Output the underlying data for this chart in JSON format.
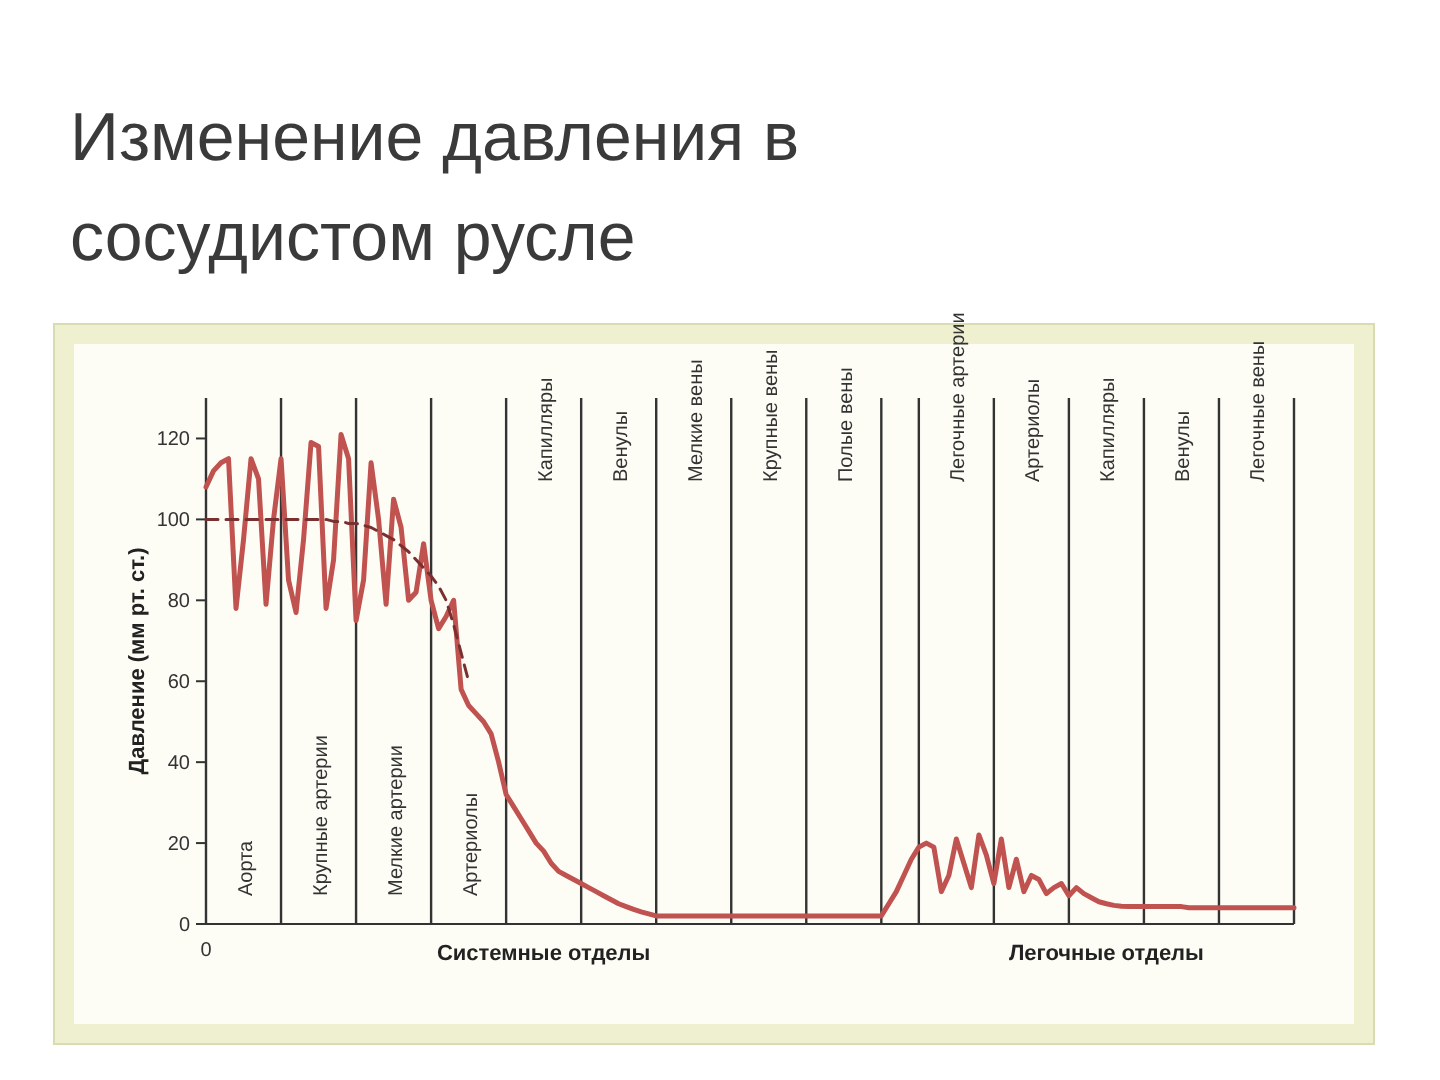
{
  "chart_data": {
    "type": "line",
    "title": "Изменение давления в сосудистом русле",
    "ylabel": "Давление (мм рт. ст.)",
    "categories": [
      "0",
      null,
      null,
      null,
      null,
      "Аорта",
      null,
      null,
      null,
      null,
      null,
      null,
      null,
      null,
      null,
      "Крупные артерии",
      null,
      null,
      null,
      null,
      null,
      null,
      null,
      null,
      null,
      "Мелкие артерии",
      null,
      null,
      null,
      null,
      null,
      null,
      null,
      null,
      null,
      "Артериолы",
      null,
      null,
      null,
      null,
      null,
      null,
      null,
      null,
      null,
      "Капилляры",
      null,
      null,
      null,
      null,
      null,
      null,
      null,
      null,
      null,
      "Венулы",
      null,
      null,
      null,
      null,
      null,
      null,
      null,
      null,
      null,
      "Мелкие вены",
      null,
      null,
      null,
      null,
      null,
      null,
      null,
      null,
      null,
      "Крупные вены",
      null,
      null,
      null,
      null,
      null,
      null,
      null,
      null,
      null,
      "Полые вены",
      null,
      null,
      null,
      null,
      null,
      null,
      null,
      null,
      null,
      null,
      null,
      null,
      null,
      null,
      "Легочные артерии",
      null,
      null,
      null,
      null,
      null,
      null,
      null,
      null,
      null,
      "Артериолы",
      null,
      null,
      null,
      null,
      null,
      null,
      null,
      null,
      null,
      "Капилляры",
      null,
      null,
      null,
      null,
      null,
      null,
      null,
      null,
      null,
      "Венулы",
      null,
      null,
      null,
      null,
      null,
      null,
      null,
      null,
      null,
      "Легочные вены",
      null,
      null,
      null,
      null,
      null
    ],
    "ylim": [
      0,
      130
    ],
    "yticks": [
      0,
      20,
      40,
      60,
      80,
      100,
      120
    ],
    "series": [
      {
        "color": "#c0524f",
        "values": [
          108,
          112,
          114,
          115,
          78,
          95,
          115,
          110,
          79,
          100,
          115,
          85,
          77,
          95,
          119,
          118,
          78,
          90,
          121,
          115,
          75,
          85,
          114,
          100,
          79,
          105,
          98,
          80,
          82,
          94,
          80,
          73,
          76,
          80,
          58,
          54,
          52,
          50,
          47,
          40,
          32,
          29,
          26,
          23,
          20,
          18,
          15,
          13,
          12,
          11,
          10,
          9,
          8,
          7,
          6,
          5,
          4.3,
          3.6,
          3,
          2.5,
          2,
          2,
          2,
          2,
          2,
          2,
          2,
          2,
          2,
          2,
          2,
          2,
          2,
          2,
          2,
          2,
          2,
          2,
          2,
          2,
          2,
          2,
          2,
          2,
          2,
          2,
          2,
          2,
          2,
          2,
          2,
          5,
          8,
          12,
          16,
          19,
          20,
          19,
          8,
          12,
          21,
          15,
          9,
          22,
          17,
          10,
          21,
          9,
          16,
          8,
          12,
          11,
          7.5,
          9,
          10,
          7,
          9,
          7.5,
          6.5,
          5.5,
          5,
          4.6,
          4.4,
          4.3,
          4.3,
          4.3,
          4.3,
          4.3,
          4.3,
          4.3,
          4.3,
          4,
          4,
          4,
          4,
          4,
          4,
          4,
          4,
          4,
          4,
          4,
          4,
          4,
          4,
          4
        ]
      },
      {
        "color": "#7a3030",
        "line_style": "dashed",
        "values": [
          100,
          100,
          100,
          100,
          100,
          100,
          100,
          100,
          100,
          100,
          100,
          100,
          100,
          100,
          100,
          100,
          100,
          99.5,
          99.5,
          99,
          99,
          98.5,
          98,
          97,
          96,
          95,
          93.5,
          92,
          90,
          88,
          86,
          83.5,
          80,
          74,
          67,
          60,
          null,
          null,
          null,
          null,
          null,
          null,
          null,
          null,
          null,
          null,
          null,
          null,
          null,
          null,
          null,
          null,
          null,
          null,
          null,
          null,
          null,
          null,
          null,
          null,
          null,
          null,
          null,
          null,
          null,
          null,
          null,
          null,
          null,
          null,
          null,
          null,
          null,
          null,
          null,
          null,
          null,
          null,
          null,
          null,
          null,
          null,
          null,
          null,
          null,
          null,
          null,
          null,
          null,
          null,
          null,
          null,
          null,
          null,
          null,
          null,
          null,
          null,
          null,
          null,
          null,
          null,
          null,
          null,
          null,
          null,
          null,
          null,
          null,
          null,
          null,
          null,
          null,
          null,
          null,
          null,
          null,
          null,
          null,
          null,
          null,
          null,
          null,
          null,
          null,
          null,
          null,
          null,
          null,
          null,
          null,
          null,
          null,
          null,
          null,
          null,
          null,
          null,
          null,
          null,
          null,
          null,
          null,
          null,
          null,
          null
        ]
      }
    ],
    "annotations": [
      "Системные отделы",
      "Легочные отделы"
    ]
  }
}
